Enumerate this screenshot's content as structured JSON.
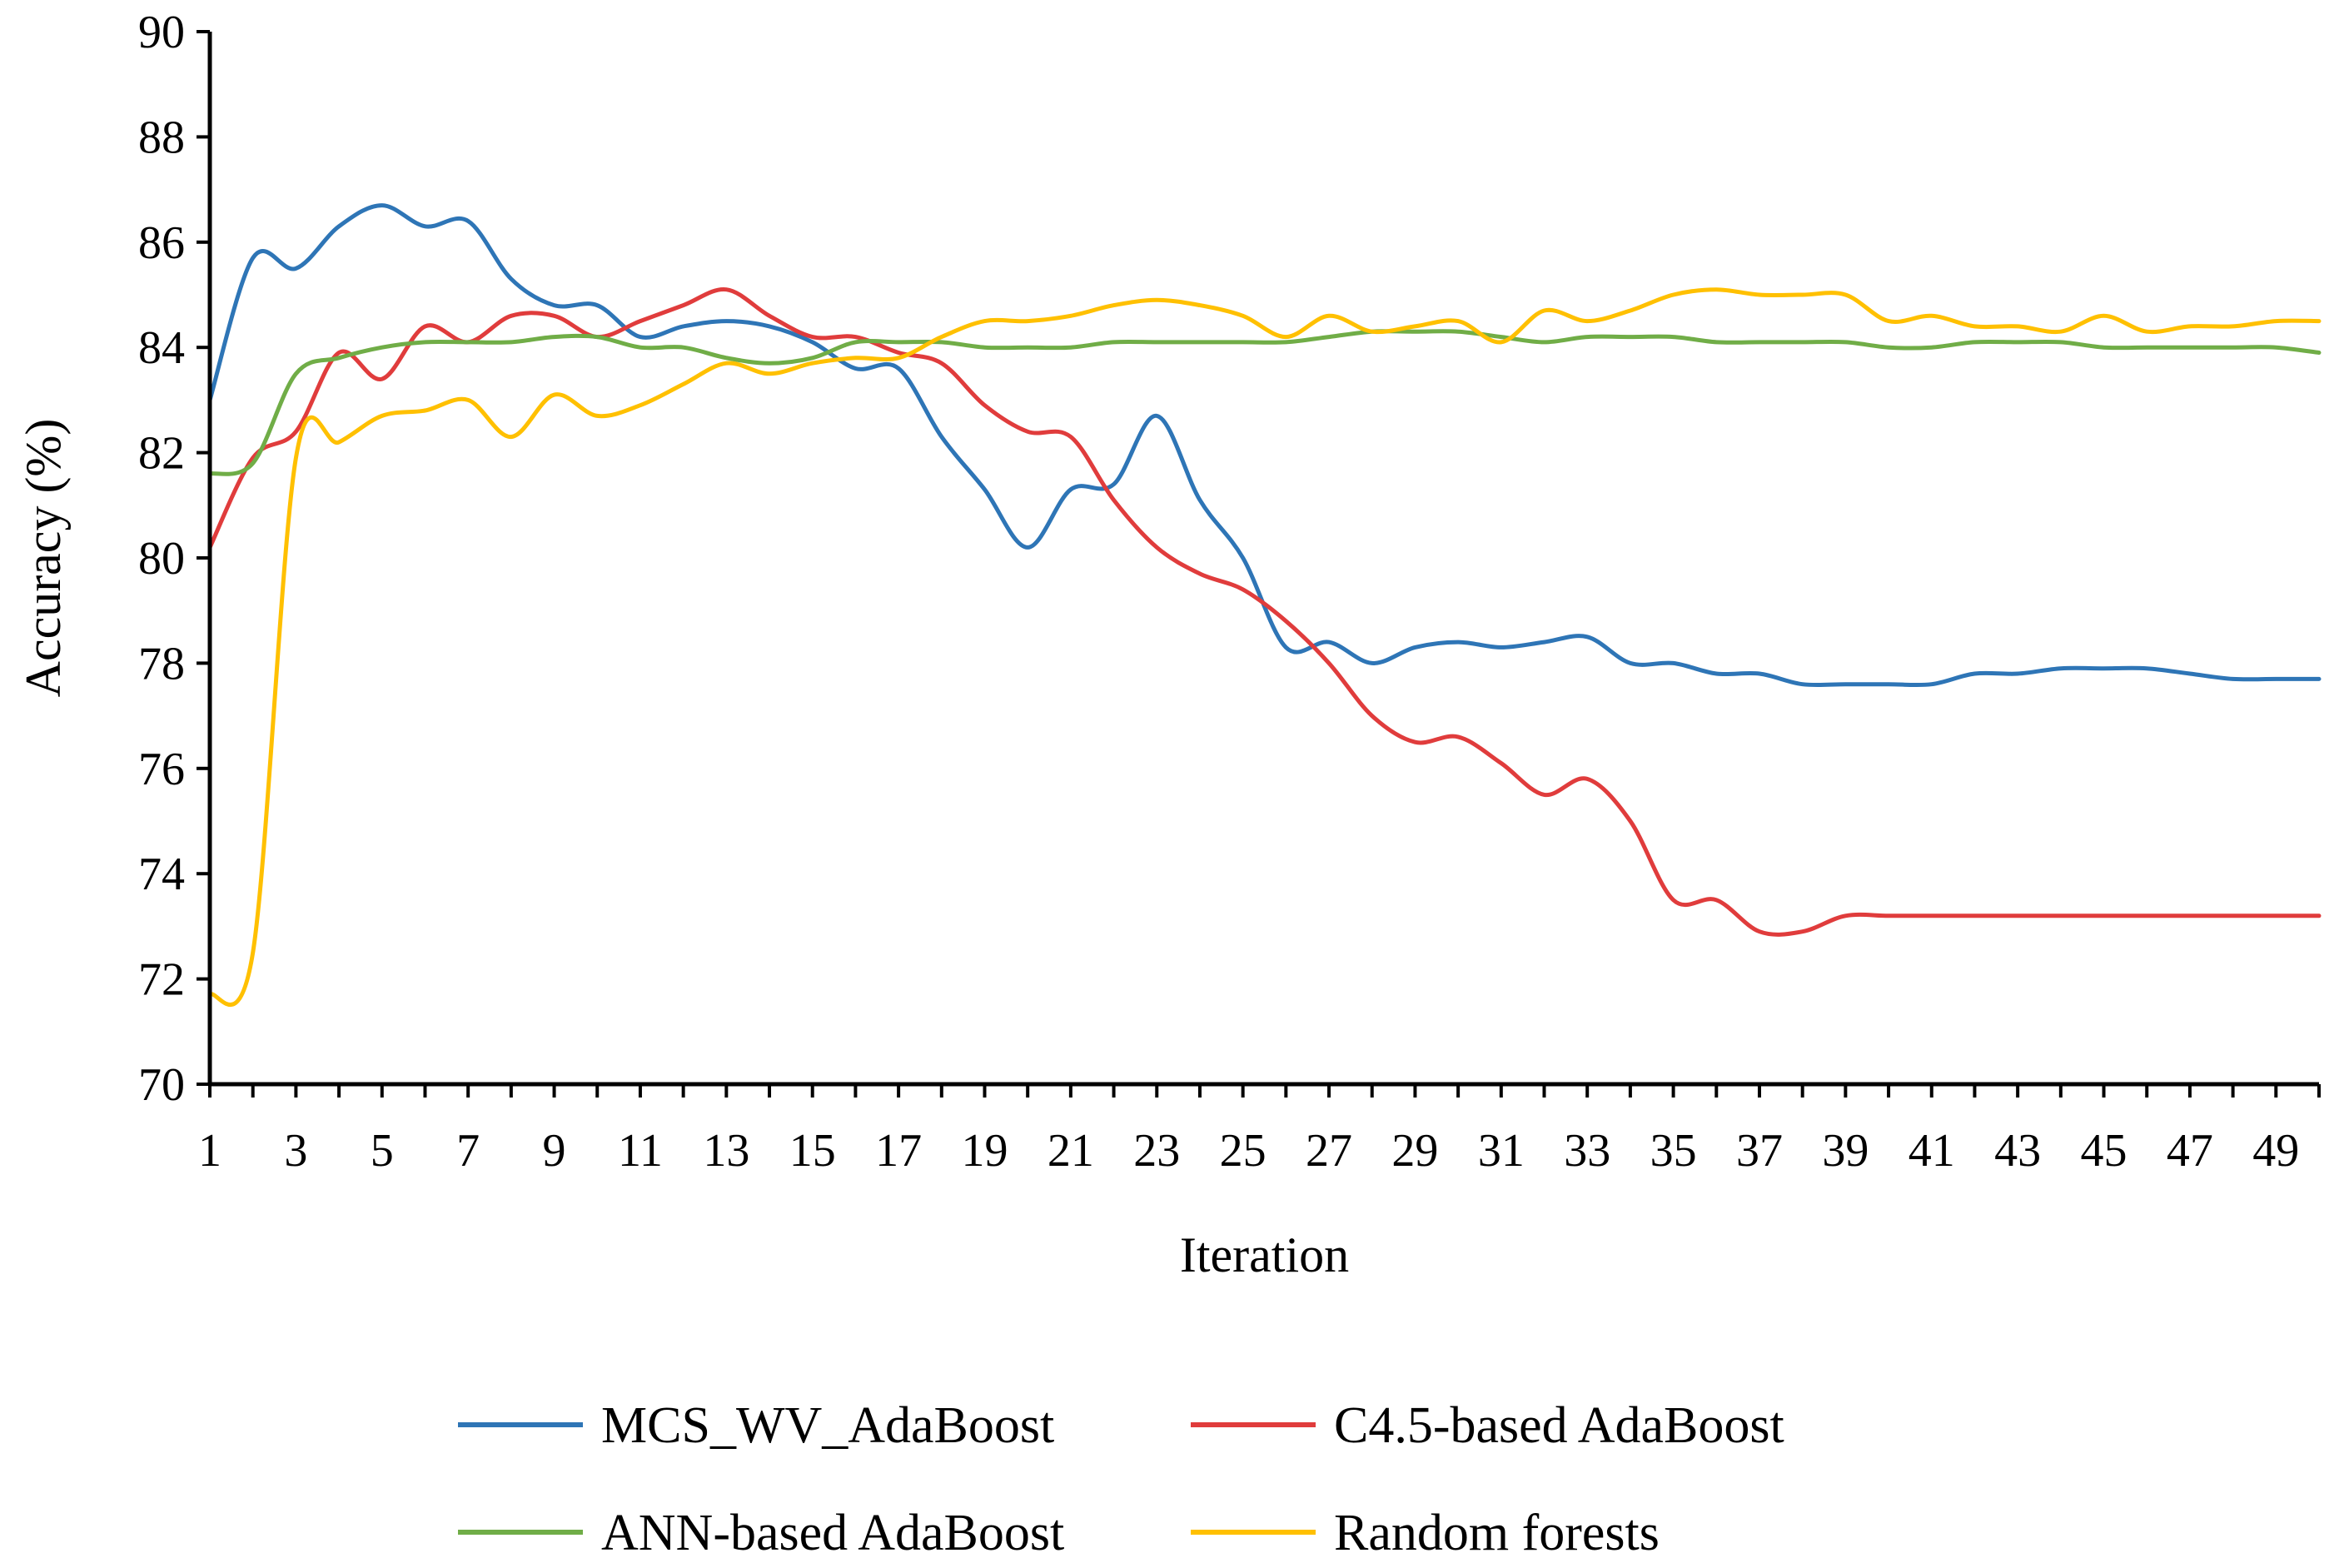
{
  "chart_data": {
    "type": "line",
    "title": "",
    "xlabel": "Iteration",
    "ylabel": "Accuracy (%)",
    "ylim": [
      70,
      90
    ],
    "xlim": [
      1,
      50
    ],
    "yticks": [
      "70",
      "72",
      "74",
      "76",
      "78",
      "80",
      "82",
      "84",
      "86",
      "88",
      "90"
    ],
    "xticks": [
      "1",
      "3",
      "5",
      "7",
      "9",
      "11",
      "13",
      "15",
      "17",
      "19",
      "21",
      "23",
      "25",
      "27",
      "29",
      "31",
      "33",
      "35",
      "37",
      "39",
      "41",
      "43",
      "45",
      "47",
      "49"
    ],
    "grid": false,
    "legend_position": "bottom",
    "x": [
      1,
      2,
      3,
      4,
      5,
      6,
      7,
      8,
      9,
      10,
      11,
      12,
      13,
      14,
      15,
      16,
      17,
      18,
      19,
      20,
      21,
      22,
      23,
      24,
      25,
      26,
      27,
      28,
      29,
      30,
      31,
      32,
      33,
      34,
      35,
      36,
      37,
      38,
      39,
      40,
      41,
      42,
      43,
      44,
      45,
      46,
      47,
      48,
      49,
      50
    ],
    "series": [
      {
        "name": "MCS_WV_AdaBoost",
        "color": "#2E75B6",
        "values": [
          83.0,
          85.7,
          85.5,
          86.3,
          86.7,
          86.3,
          86.4,
          85.3,
          84.8,
          84.8,
          84.2,
          84.4,
          84.5,
          84.4,
          84.1,
          83.6,
          83.6,
          82.3,
          81.3,
          80.2,
          81.3,
          81.4,
          82.7,
          81.1,
          80.0,
          78.3,
          78.4,
          78.0,
          78.3,
          78.4,
          78.3,
          78.4,
          78.5,
          78.0,
          78.0,
          77.8,
          77.8,
          77.6,
          77.6,
          77.6,
          77.6,
          77.8,
          77.8,
          77.9,
          77.9,
          77.9,
          77.8,
          77.7,
          77.7,
          77.7
        ]
      },
      {
        "name": "C4.5-based AdaBoost",
        "color": "#E03C3C",
        "values": [
          80.2,
          81.9,
          82.4,
          83.9,
          83.4,
          84.4,
          84.1,
          84.6,
          84.6,
          84.2,
          84.5,
          84.8,
          85.1,
          84.6,
          84.2,
          84.2,
          83.9,
          83.7,
          82.9,
          82.4,
          82.3,
          81.1,
          80.2,
          79.7,
          79.4,
          78.8,
          78.0,
          77.0,
          76.5,
          76.6,
          76.1,
          75.5,
          75.8,
          75.0,
          73.5,
          73.5,
          72.9,
          72.9,
          73.2,
          73.2,
          73.2,
          73.2,
          73.2,
          73.2,
          73.2,
          73.2,
          73.2,
          73.2,
          73.2,
          73.2
        ]
      },
      {
        "name": "ANN-based AdaBoost",
        "color": "#70AD47",
        "values": [
          81.6,
          81.8,
          83.5,
          83.8,
          84.0,
          84.1,
          84.1,
          84.1,
          84.2,
          84.2,
          84.0,
          84.0,
          83.8,
          83.7,
          83.8,
          84.1,
          84.1,
          84.1,
          84.0,
          84.0,
          84.0,
          84.1,
          84.1,
          84.1,
          84.1,
          84.1,
          84.2,
          84.3,
          84.3,
          84.3,
          84.2,
          84.1,
          84.2,
          84.2,
          84.2,
          84.1,
          84.1,
          84.1,
          84.1,
          84.0,
          84.0,
          84.1,
          84.1,
          84.1,
          84.0,
          84.0,
          84.0,
          84.0,
          84.0,
          83.9
        ]
      },
      {
        "name": "Random forests",
        "color": "#FFC000",
        "values": [
          71.7,
          72.5,
          81.9,
          82.2,
          82.7,
          82.8,
          83.0,
          82.3,
          83.1,
          82.7,
          82.9,
          83.3,
          83.7,
          83.5,
          83.7,
          83.8,
          83.8,
          84.2,
          84.5,
          84.5,
          84.6,
          84.8,
          84.9,
          84.8,
          84.6,
          84.2,
          84.6,
          84.3,
          84.4,
          84.5,
          84.1,
          84.7,
          84.5,
          84.7,
          85.0,
          85.1,
          85.0,
          85.0,
          85.0,
          84.5,
          84.6,
          84.4,
          84.4,
          84.3,
          84.6,
          84.3,
          84.4,
          84.4,
          84.5,
          84.5
        ]
      }
    ]
  }
}
